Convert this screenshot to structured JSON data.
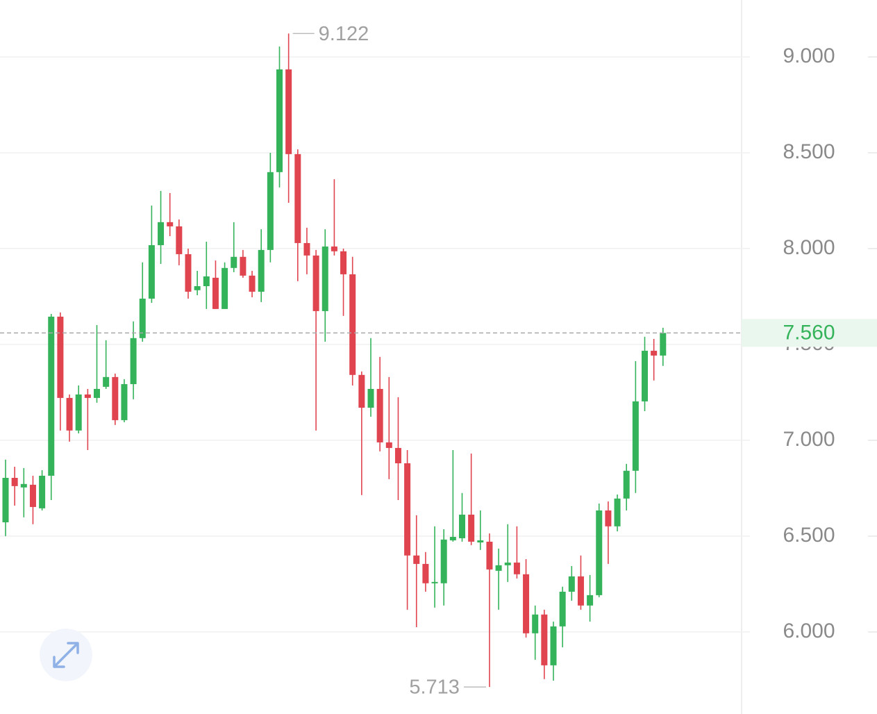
{
  "chart_data": {
    "type": "candlestick",
    "up_color": "#34b35a",
    "down_color": "#e0444f",
    "ylim": [
      5.572,
      9.297
    ],
    "yticks": [
      {
        "value": 9,
        "label": "9.000"
      },
      {
        "value": 8.5,
        "label": "8.500"
      },
      {
        "value": 8,
        "label": "8.000"
      },
      {
        "value": 7.5,
        "label": "7.500"
      },
      {
        "value": 7,
        "label": "7.000"
      },
      {
        "value": 6.5,
        "label": "6.500"
      },
      {
        "value": 6,
        "label": "6.000"
      }
    ],
    "grid": true,
    "max_label": 9.122,
    "min_label": 5.713,
    "last_price": {
      "value": 7.56,
      "label": "7.560"
    },
    "open": [
      6.572,
      6.804,
      6.754,
      6.768,
      6.645,
      6.815,
      7.645,
      7.221,
      7.051,
      7.239,
      7.221,
      7.279,
      7.33,
      7.105,
      7.293,
      7.533,
      7.739,
      8.018,
      8.138,
      8.116,
      7.971,
      7.783,
      7.804,
      7.848,
      7.685,
      7.899,
      7.957,
      7.859,
      7.775,
      7.993,
      8.399,
      8.935,
      8.493,
      8.029,
      7.964,
      7.674,
      8.011,
      7.986,
      7.866,
      7.341,
      7.17,
      7.268,
      6.989,
      6.96,
      6.88,
      6.399,
      6.355,
      6.254,
      6.254,
      6.478,
      6.489,
      6.612,
      6.467,
      6.471,
      6.319,
      6.348,
      6.362,
      6.301,
      5.993,
      6.091,
      5.826,
      6.029,
      6.21,
      6.29,
      6.138,
      6.192,
      6.634,
      6.551,
      6.696,
      6.841,
      7.203,
      7.467,
      7.442
    ],
    "high": [
      6.899,
      6.862,
      6.855,
      6.815,
      6.844,
      7.659,
      7.667,
      7.239,
      7.286,
      7.268,
      7.601,
      7.522,
      7.348,
      7.319,
      7.62,
      7.928,
      8.225,
      8.301,
      8.29,
      8.152,
      8.0,
      7.884,
      8.036,
      7.938,
      7.928,
      8.138,
      7.993,
      7.884,
      8.101,
      8.5,
      9.054,
      9.122,
      8.518,
      8.109,
      7.993,
      8.101,
      8.362,
      8.0,
      7.957,
      7.359,
      7.533,
      7.435,
      7.33,
      7.225,
      6.949,
      6.609,
      6.417,
      6.551,
      6.536,
      6.949,
      6.725,
      6.931,
      6.634,
      6.514,
      6.435,
      6.562,
      6.551,
      6.38,
      6.138,
      6.116,
      6.054,
      6.236,
      6.344,
      6.399,
      6.297,
      6.67,
      6.681,
      6.717,
      6.877,
      7.413,
      7.54,
      7.529,
      7.587
    ],
    "low": [
      6.5,
      6.659,
      6.598,
      6.562,
      6.634,
      6.688,
      7.051,
      6.993,
      7.036,
      6.949,
      7.196,
      7.268,
      7.08,
      7.094,
      7.214,
      7.514,
      7.717,
      7.92,
      8.065,
      7.913,
      7.739,
      7.757,
      7.685,
      7.685,
      7.685,
      7.877,
      7.848,
      7.746,
      7.721,
      7.928,
      8.319,
      8.239,
      7.83,
      7.866,
      7.051,
      7.514,
      7.964,
      7.649,
      7.286,
      6.714,
      7.123,
      6.942,
      6.797,
      6.688,
      6.116,
      6.025,
      6.21,
      6.127,
      6.138,
      6.471,
      6.471,
      6.453,
      6.428,
      5.713,
      6.116,
      6.261,
      6.279,
      5.971,
      5.855,
      5.754,
      5.746,
      5.92,
      6.163,
      6.116,
      6.054,
      6.181,
      6.355,
      6.525,
      6.634,
      6.725,
      7.152,
      7.312,
      7.388
    ],
    "close": [
      6.804,
      6.761,
      6.772,
      6.652,
      6.815,
      7.645,
      7.221,
      7.051,
      7.239,
      7.221,
      7.268,
      7.33,
      7.105,
      7.293,
      7.533,
      7.739,
      8.018,
      8.138,
      8.116,
      7.971,
      7.775,
      7.804,
      7.855,
      7.685,
      7.899,
      7.957,
      7.859,
      7.775,
      7.993,
      8.399,
      8.935,
      8.493,
      8.029,
      7.964,
      7.674,
      8.011,
      7.986,
      7.866,
      7.341,
      7.17,
      7.268,
      6.989,
      6.96,
      6.88,
      6.399,
      6.355,
      6.254,
      6.261,
      6.482,
      6.496,
      6.612,
      6.471,
      6.478,
      6.326,
      6.348,
      6.362,
      6.301,
      5.993,
      6.091,
      5.826,
      6.029,
      6.21,
      6.29,
      6.138,
      6.192,
      6.634,
      6.551,
      6.696,
      6.841,
      7.203,
      7.467,
      7.442,
      7.56
    ]
  }
}
